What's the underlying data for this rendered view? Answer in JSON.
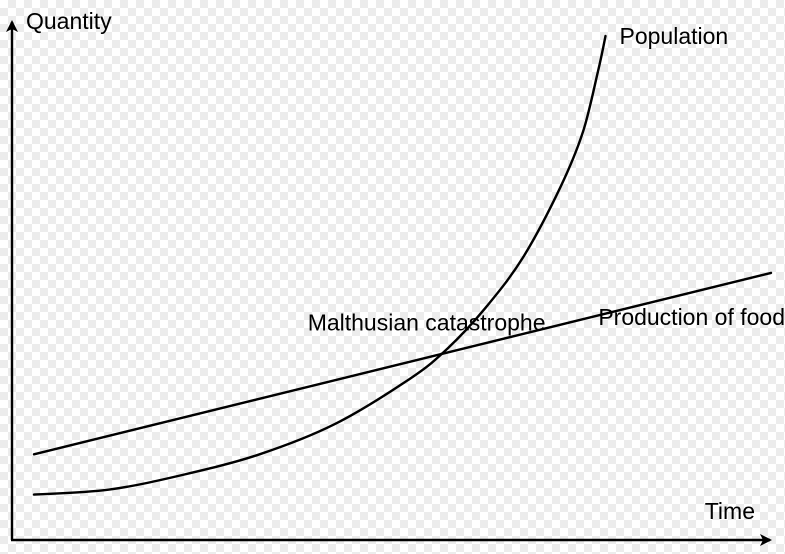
{
  "chart_data": {
    "type": "line",
    "xlabel": "Time",
    "ylabel": "Quantity",
    "xlim": [
      0,
      1
    ],
    "ylim": [
      0,
      1
    ],
    "grid": false,
    "annotations": [
      {
        "text": "Malthusian catastrophe",
        "x": 0.53,
        "y": 0.38
      }
    ],
    "series": [
      {
        "name": "Population",
        "x": [
          0.0,
          0.1,
          0.2,
          0.3,
          0.4,
          0.5,
          0.55,
          0.6,
          0.65,
          0.7,
          0.73,
          0.75,
          0.76
        ],
        "y": [
          0.09,
          0.1,
          0.13,
          0.17,
          0.23,
          0.32,
          0.38,
          0.46,
          0.56,
          0.7,
          0.81,
          0.93,
          1.0
        ]
      },
      {
        "name": "Production of food",
        "x": [
          0.0,
          0.98
        ],
        "y": [
          0.17,
          0.53
        ]
      }
    ]
  },
  "colors": {
    "ink": "#000000"
  }
}
